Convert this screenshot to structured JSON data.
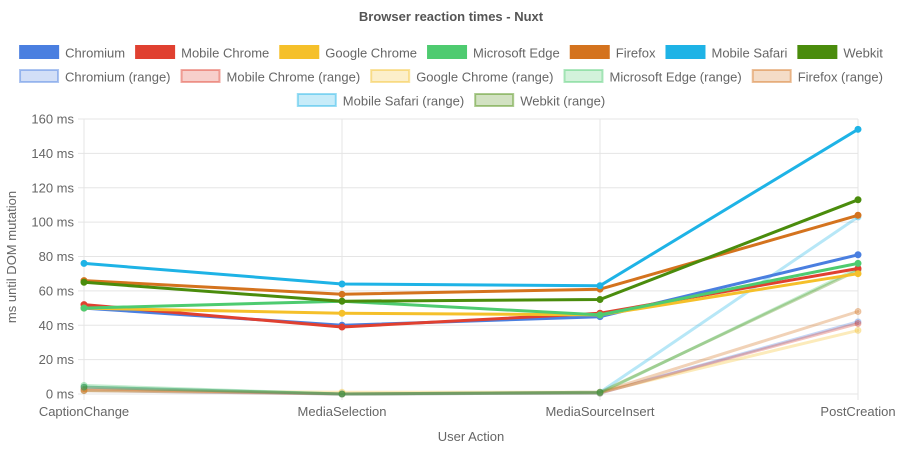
{
  "chart_data": {
    "type": "line",
    "title": "Browser reaction times - Nuxt",
    "xlabel": "User Action",
    "ylabel": "ms until DOM mutation",
    "categories": [
      "CaptionChange",
      "MediaSelection",
      "MediaSourceInsert",
      "PostCreation"
    ],
    "ylim": [
      0,
      160
    ],
    "yticks": [
      0,
      20,
      40,
      60,
      80,
      100,
      120,
      140,
      160
    ],
    "ytick_labels": [
      "0 ms",
      "20 ms",
      "40 ms",
      "60 ms",
      "80 ms",
      "100 ms",
      "120 ms",
      "140 ms",
      "160 ms"
    ],
    "grid": true,
    "legend_position": "top",
    "series": [
      {
        "name": "Chromium",
        "color": "#4a7fe0",
        "values": [
          50,
          40,
          45,
          81
        ],
        "range": false
      },
      {
        "name": "Mobile Chrome",
        "color": "#e04030",
        "values": [
          52,
          39,
          47,
          73
        ],
        "range": false
      },
      {
        "name": "Google Chrome",
        "color": "#f5c02a",
        "values": [
          50,
          47,
          46,
          70
        ],
        "range": false
      },
      {
        "name": "Microsoft Edge",
        "color": "#4ecb70",
        "values": [
          50,
          54,
          46,
          76
        ],
        "range": false
      },
      {
        "name": "Firefox",
        "color": "#d4731e",
        "values": [
          66,
          58,
          61,
          104
        ],
        "range": false
      },
      {
        "name": "Mobile Safari",
        "color": "#1eb3e6",
        "values": [
          76,
          64,
          63,
          154
        ],
        "range": false
      },
      {
        "name": "Webkit",
        "color": "#4a8c0c",
        "values": [
          65,
          54,
          55,
          113
        ],
        "range": false
      },
      {
        "name": "Chromium (range)",
        "color": "#4a7fe0",
        "values": [
          2,
          0,
          0.5,
          42
        ],
        "range": true
      },
      {
        "name": "Mobile Chrome (range)",
        "color": "#e04030",
        "values": [
          3,
          0,
          0.5,
          41
        ],
        "range": true
      },
      {
        "name": "Google Chrome (range)",
        "color": "#f5c02a",
        "values": [
          2,
          1,
          1,
          37
        ],
        "range": true
      },
      {
        "name": "Microsoft Edge (range)",
        "color": "#4ecb70",
        "values": [
          5,
          0,
          0.5,
          73
        ],
        "range": true
      },
      {
        "name": "Firefox (range)",
        "color": "#d4731e",
        "values": [
          2,
          0,
          1,
          48
        ],
        "range": true
      },
      {
        "name": "Mobile Safari (range)",
        "color": "#1eb3e6",
        "values": [
          4,
          0,
          1,
          103
        ],
        "range": true
      },
      {
        "name": "Webkit (range)",
        "color": "#4a8c0c",
        "values": [
          4,
          0,
          1,
          72
        ],
        "range": true
      }
    ]
  }
}
